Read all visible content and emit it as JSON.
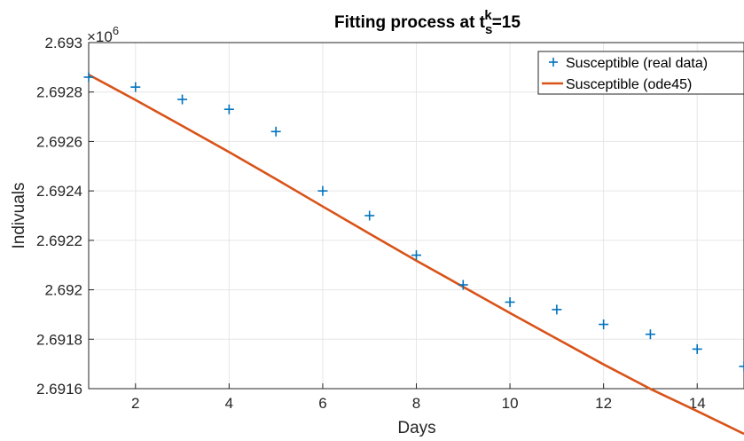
{
  "chart_data": {
    "type": "line",
    "title_main": "Fitting process at t",
    "title_sup": "k",
    "title_sub": "s",
    "title_end": "=15",
    "xlabel": "Days",
    "ylabel": "Indivuals",
    "y_exponent_label": "×10",
    "y_exponent_power": "6",
    "xlim": [
      1,
      15
    ],
    "ylim": [
      2.6916,
      2.693
    ],
    "x_ticks": [
      2,
      4,
      6,
      8,
      10,
      12,
      14
    ],
    "x_tick_labels": [
      "2",
      "4",
      "6",
      "8",
      "10",
      "12",
      "14"
    ],
    "y_ticks": [
      2.6916,
      2.6918,
      2.692,
      2.6922,
      2.6924,
      2.6926,
      2.6928,
      2.693
    ],
    "y_tick_labels": [
      "2.6916",
      "2.6918",
      "2.692",
      "2.6922",
      "2.6924",
      "2.6926",
      "2.6928",
      "2.693"
    ],
    "grid": true,
    "legend_position": "top-right",
    "series": [
      {
        "name": "Susceptible (real data)",
        "style": "marker-plus",
        "color": "#0072BD",
        "x": [
          1,
          2,
          3,
          4,
          5,
          6,
          7,
          8,
          9,
          10,
          11,
          12,
          13,
          14,
          15
        ],
        "y": [
          2.69286,
          2.69282,
          2.69277,
          2.69273,
          2.69264,
          2.6924,
          2.6923,
          2.69214,
          2.69202,
          2.69195,
          2.69192,
          2.69186,
          2.69182,
          2.69176,
          2.69169
        ]
      },
      {
        "name": "Susceptible (ode45)",
        "style": "line",
        "color": "#D95319",
        "x": [
          1,
          2,
          3,
          4,
          5,
          6,
          7,
          8,
          9,
          10,
          11,
          12,
          13,
          14,
          15
        ],
        "y": [
          2.69287,
          2.692768,
          2.692663,
          2.692557,
          2.692448,
          2.692337,
          2.692227,
          2.692118,
          2.692012,
          2.691906,
          2.691802,
          2.691698,
          2.691599,
          2.691509,
          2.691417
        ]
      }
    ]
  }
}
